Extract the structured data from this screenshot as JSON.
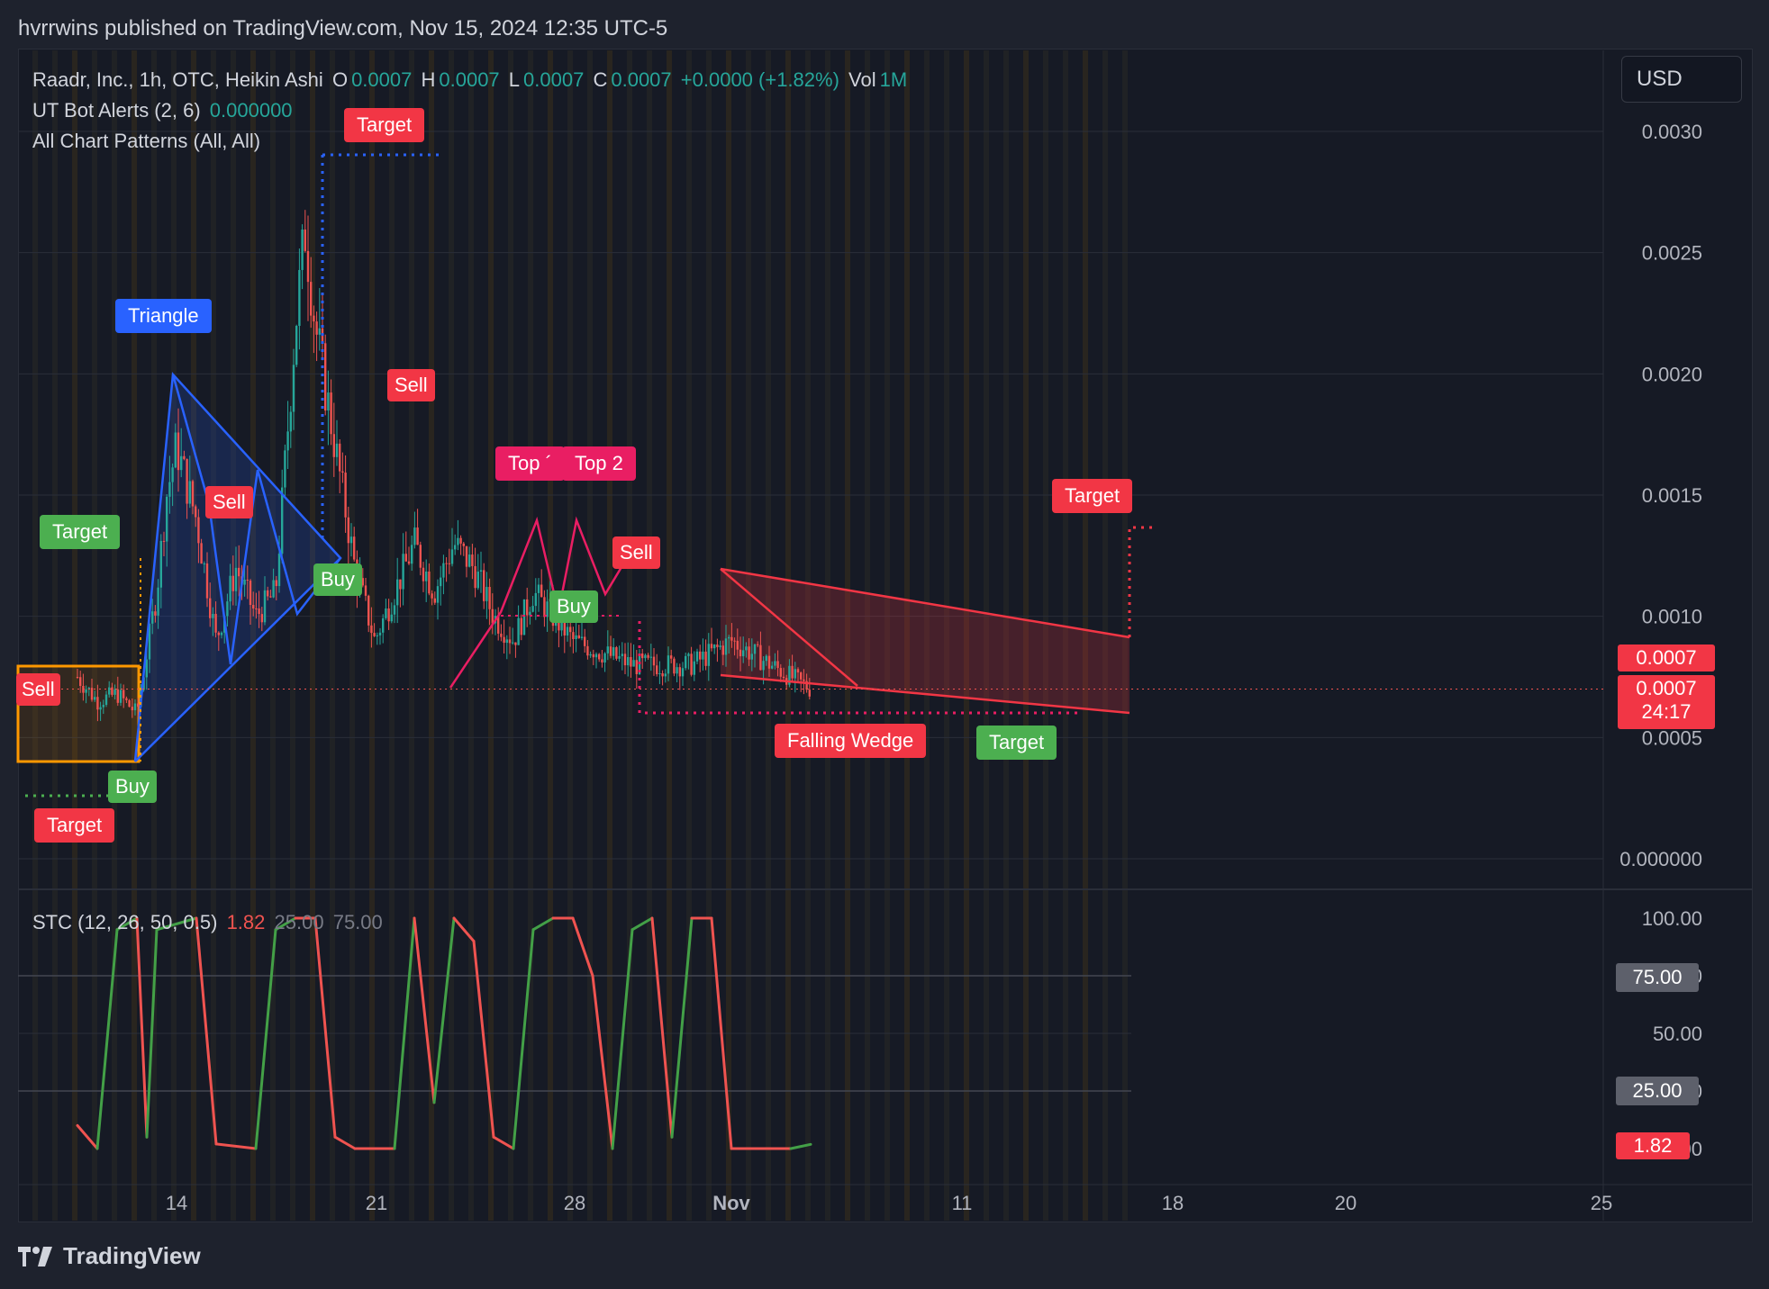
{
  "header": {
    "publisher_line": "hvrrwins published on TradingView.com, Nov 15, 2024 12:35 UTC-5"
  },
  "footer": {
    "brand": "TradingView"
  },
  "currency_button": {
    "label": "USD"
  },
  "legend": {
    "symbol": "Raadr, Inc., 1h, OTC, Heikin Ashi",
    "o_label": "O",
    "o_value": "0.0007",
    "h_label": "H",
    "h_value": "0.0007",
    "l_label": "L",
    "l_value": "0.0007",
    "c_label": "C",
    "c_value": "0.0007",
    "change": "+0.0000 (+1.82%)",
    "vol_label": "Vol",
    "vol_value": "1M",
    "indicator1": "UT Bot Alerts (2, 6)",
    "indicator1_value": "0.000000",
    "indicator2": "All Chart Patterns (All, All)"
  },
  "stc_legend": {
    "name": "STC (12, 26, 50, 0.5)",
    "value": "1.82",
    "low": "25.00",
    "high": "75.00"
  },
  "labels": {
    "triangle": "Triangle",
    "target_top": "Target",
    "sell_1": "Sell",
    "sell_2": "Sell",
    "sell_3": "Sell",
    "sell_left": "Sell",
    "target_green_left": "Target",
    "buy_1": "Buy",
    "buy_2": "Buy",
    "buy_3": "Buy",
    "target_red_left": "Target",
    "top_1": "Top ´",
    "top_2": "Top 2",
    "target_right": "Target",
    "falling_wedge": "Falling Wedge",
    "target_green_right": "Target"
  },
  "price_tags": {
    "last_price": "0.0007",
    "current_price": "0.0007",
    "countdown": "24:17",
    "stc_75": "75.00",
    "stc_25": "25.00",
    "stc_value": "1.82"
  },
  "colors": {
    "up": "#26a69a",
    "down": "#ef5350",
    "blue": "#2962ff",
    "pink": "#f23645",
    "green": "#4caf50",
    "stc_up": "#43a047",
    "stc_down": "#ef5350"
  },
  "chart_data": [
    {
      "type": "candlestick",
      "title": "Raadr, Inc., 1h, OTC, Heikin Ashi",
      "x_ticks": [
        "14",
        "21",
        "28",
        "Nov",
        "11",
        "18",
        "20",
        "25"
      ],
      "y_ticks": [
        "0.0030",
        "0.0025",
        "0.0020",
        "0.0015",
        "0.0010",
        "0.0005",
        "0.000000"
      ],
      "ylim": [
        0,
        0.003
      ],
      "close_path": [
        [
          "Oct 9",
          0.00075
        ],
        [
          "Oct 10",
          0.00065
        ],
        [
          "Oct 11",
          0.00068
        ],
        [
          "Oct 12",
          0.0006
        ],
        [
          "Oct 13",
          0.0011
        ],
        [
          "Oct 13.5",
          0.0015
        ],
        [
          "Oct 14",
          0.0017
        ],
        [
          "Oct 15",
          0.0014
        ],
        [
          "Oct 16",
          0.0009
        ],
        [
          "Oct 17",
          0.0012
        ],
        [
          "Oct 18",
          0.001
        ],
        [
          "Oct 19",
          0.0011
        ],
        [
          "Oct 20",
          0.0022
        ],
        [
          "Oct 20.5",
          0.0026
        ],
        [
          "Oct 21",
          0.0022
        ],
        [
          "Oct 22",
          0.0017
        ],
        [
          "Oct 23",
          0.0012
        ],
        [
          "Oct 24",
          0.0009
        ],
        [
          "Oct 25",
          0.0011
        ],
        [
          "Oct 26",
          0.0013
        ],
        [
          "Oct 27",
          0.0011
        ],
        [
          "Oct 28",
          0.0013
        ],
        [
          "Oct 29",
          0.0012
        ],
        [
          "Oct 30",
          0.001
        ],
        [
          "Oct 31",
          0.0009
        ],
        [
          "Nov 1",
          0.0011
        ],
        [
          "Nov 3",
          0.0009
        ],
        [
          "Nov 6",
          0.0008
        ],
        [
          "Nov 9",
          0.0008
        ],
        [
          "Nov 11",
          0.0009
        ],
        [
          "Nov 13",
          0.0008
        ],
        [
          "Nov 15",
          0.0007
        ]
      ],
      "volume": "1M",
      "last_price": 0.0007
    },
    {
      "type": "line",
      "title": "STC (12, 26, 50, 0.5)",
      "y_ticks": [
        "100.00",
        "75.00",
        "50.00",
        "25.00",
        "0.0000"
      ],
      "ylim": [
        0,
        100
      ],
      "reference_lines": [
        75,
        25
      ],
      "points": [
        [
          "Oct 9",
          10
        ],
        [
          "Oct 10",
          0
        ],
        [
          "Oct 11",
          95
        ],
        [
          "Oct 12",
          100
        ],
        [
          "Oct 12.5",
          5
        ],
        [
          "Oct 13",
          95
        ],
        [
          "Oct 15",
          100
        ],
        [
          "Oct 16",
          2
        ],
        [
          "Oct 18",
          0
        ],
        [
          "Oct 19",
          95
        ],
        [
          "Oct 20",
          100
        ],
        [
          "Oct 21",
          100
        ],
        [
          "Oct 22",
          5
        ],
        [
          "Oct 23",
          0
        ],
        [
          "Oct 25",
          0
        ],
        [
          "Oct 26",
          100
        ],
        [
          "Oct 27",
          20
        ],
        [
          "Oct 28",
          100
        ],
        [
          "Oct 29",
          90
        ],
        [
          "Oct 30",
          5
        ],
        [
          "Oct 31",
          0
        ],
        [
          "Nov 1",
          95
        ],
        [
          "Nov 2",
          100
        ],
        [
          "Nov 3",
          100
        ],
        [
          "Nov 4",
          75
        ],
        [
          "Nov 5",
          0
        ],
        [
          "Nov 6",
          95
        ],
        [
          "Nov 7",
          100
        ],
        [
          "Nov 8",
          5
        ],
        [
          "Nov 9",
          100
        ],
        [
          "Nov 10",
          100
        ],
        [
          "Nov 11",
          0
        ],
        [
          "Nov 14",
          0
        ],
        [
          "Nov 15",
          1.82
        ]
      ],
      "current_value": 1.82
    }
  ]
}
